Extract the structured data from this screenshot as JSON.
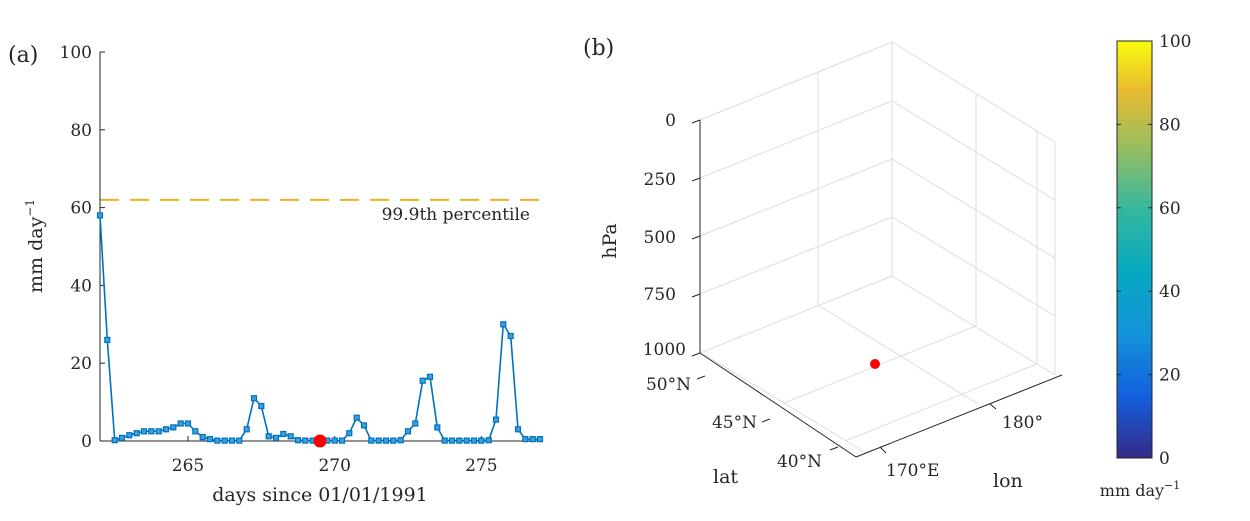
{
  "panel_a": {
    "label": "(a)",
    "xlabel": "days since 01/01/1991",
    "ylabel": "mm day",
    "ylabel_exp": "−1",
    "threshold_label": "99.9th percentile",
    "xticks": [
      "265",
      "270",
      "275"
    ],
    "yticks": [
      "0",
      "20",
      "40",
      "60",
      "80",
      "100"
    ]
  },
  "panel_b": {
    "label": "(b)",
    "zlabel": "hPa",
    "zticks": [
      "0",
      "250",
      "500",
      "750",
      "1000"
    ],
    "ylabel": "lat",
    "yticks": [
      "50°N",
      "45°N",
      "40°N"
    ],
    "xlabel": "lon",
    "xticks": [
      "170°E",
      "180°"
    ]
  },
  "colorbar": {
    "ticks": [
      "0",
      "20",
      "40",
      "60",
      "80",
      "100"
    ],
    "label": "mm day",
    "label_exp": "−1"
  },
  "colors": {
    "series": "#0072bd",
    "marker_fill": "#3aa0e0",
    "threshold": "#edb120",
    "highlight": "#ff0000",
    "axis": "#262626",
    "grid": "#dcdcdc"
  },
  "chart_data": [
    {
      "type": "line",
      "panel": "a",
      "xlabel": "days since 01/01/1991",
      "ylabel": "mm day−1",
      "xlim": [
        262,
        277
      ],
      "ylim": [
        0,
        100
      ],
      "threshold": {
        "value": 62,
        "label": "99.9th percentile"
      },
      "highlight_point": {
        "x": 269.5,
        "y": 0
      },
      "series": [
        {
          "x": [
            262.0,
            262.25,
            262.5,
            262.75,
            263.0,
            263.25,
            263.5,
            263.75,
            264.0,
            264.25,
            264.5,
            264.75,
            265.0,
            265.25,
            265.5,
            265.75,
            266.0,
            266.25,
            266.5,
            266.75,
            267.0,
            267.25,
            267.5,
            267.75,
            268.0,
            268.25,
            268.5,
            268.75,
            269.0,
            269.25,
            269.5,
            269.75,
            270.0,
            270.25,
            270.5,
            270.75,
            271.0,
            271.25,
            271.5,
            271.75,
            272.0,
            272.25,
            272.5,
            272.75,
            273.0,
            273.25,
            273.5,
            273.75,
            274.0,
            274.25,
            274.5,
            274.75,
            275.0,
            275.25,
            275.5,
            275.75,
            276.0,
            276.25,
            276.5,
            276.75,
            277.0
          ],
          "values": [
            58,
            26,
            0.2,
            0.8,
            1.5,
            2,
            2.5,
            2.5,
            2.5,
            3,
            3.5,
            4.5,
            4.5,
            2.5,
            1,
            0.5,
            0.1,
            0.1,
            0.1,
            0.1,
            3,
            11,
            9,
            1.2,
            0.8,
            1.8,
            1.2,
            0.2,
            0.1,
            0.1,
            0.1,
            0.1,
            0.1,
            0.1,
            2,
            6,
            4,
            0.1,
            0.1,
            0.1,
            0.1,
            0.2,
            2.5,
            4.5,
            15.5,
            16.5,
            3.5,
            0.1,
            0.1,
            0.1,
            0.1,
            0.1,
            0.1,
            0.2,
            5.5,
            30,
            27,
            3,
            0.5,
            0.5,
            0.5
          ]
        }
      ]
    },
    {
      "type": "scatter",
      "panel": "b",
      "xlabel": "lon",
      "ylabel": "lat",
      "zlabel": "hPa",
      "colorbar": {
        "range": [
          0,
          100
        ],
        "label": "mm day−1"
      },
      "points": [
        {
          "x": 172,
          "y": 44,
          "z": 1000
        }
      ]
    }
  ]
}
